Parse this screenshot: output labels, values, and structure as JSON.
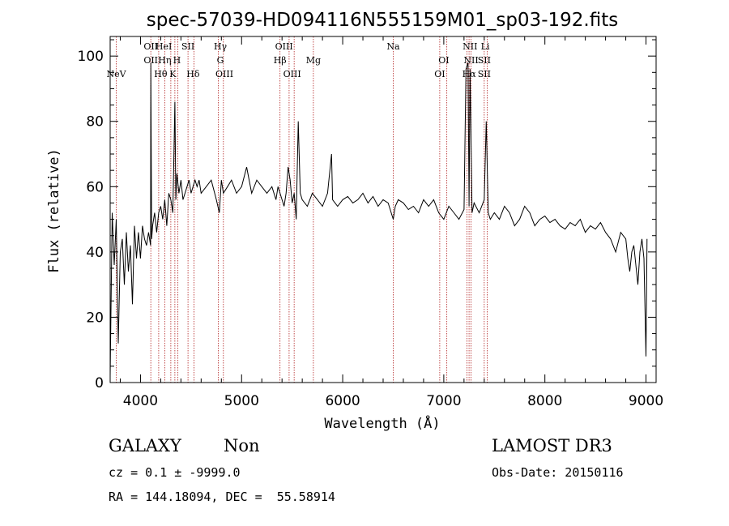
{
  "chart_data": {
    "type": "line",
    "title": "spec-57039-HD094116N555159M01_sp03-192.fits",
    "xlabel": "Wavelength (Å)",
    "ylabel": "Flux (relative)",
    "xlim": [
      3700,
      9100
    ],
    "ylim": [
      0,
      106
    ],
    "xticks": [
      4000,
      5000,
      6000,
      7000,
      8000,
      9000
    ],
    "yticks": [
      0,
      20,
      40,
      60,
      80,
      100
    ],
    "grid": false,
    "series": [
      {
        "values_x": [
          3700,
          3720,
          3740,
          3760,
          3780,
          3800,
          3820,
          3840,
          3860,
          3880,
          3900,
          3920,
          3940,
          3960,
          3980,
          4000,
          4020,
          4040,
          4060,
          4080,
          4100,
          4102,
          4110,
          4120,
          4140,
          4160,
          4180,
          4200,
          4220,
          4240,
          4260,
          4280,
          4300,
          4320,
          4340,
          4350,
          4360,
          4380,
          4400,
          4420,
          4440,
          4460,
          4480,
          4500,
          4520,
          4540,
          4560,
          4580,
          4600,
          4650,
          4700,
          4750,
          4780,
          4800,
          4820,
          4861,
          4900,
          4950,
          5000,
          5050,
          5100,
          5150,
          5200,
          5250,
          5300,
          5340,
          5360,
          5380,
          5400,
          5420,
          5440,
          5460,
          5480,
          5500,
          5520,
          5540,
          5560,
          5580,
          5600,
          5650,
          5700,
          5750,
          5800,
          5850,
          5890,
          5900,
          5950,
          6000,
          6050,
          6100,
          6150,
          6200,
          6250,
          6300,
          6350,
          6400,
          6450,
          6500,
          6520,
          6550,
          6600,
          6650,
          6700,
          6750,
          6800,
          6850,
          6900,
          6950,
          7000,
          7050,
          7100,
          7150,
          7200,
          7220,
          7240,
          7250,
          7260,
          7280,
          7300,
          7350,
          7400,
          7420,
          7440,
          7460,
          7500,
          7550,
          7600,
          7650,
          7700,
          7750,
          7800,
          7850,
          7900,
          7950,
          8000,
          8050,
          8100,
          8150,
          8200,
          8250,
          8300,
          8350,
          8400,
          8450,
          8500,
          8550,
          8600,
          8650,
          8700,
          8750,
          8800,
          8820,
          8840,
          8860,
          8880,
          8900,
          8920,
          8940,
          8960,
          8980,
          9000,
          9010
        ],
        "values_y": [
          2,
          52,
          36,
          50,
          12,
          40,
          44,
          30,
          46,
          34,
          42,
          24,
          48,
          38,
          46,
          38,
          48,
          44,
          42,
          46,
          42,
          98,
          44,
          48,
          52,
          46,
          52,
          54,
          50,
          56,
          48,
          58,
          56,
          52,
          86,
          56,
          64,
          58,
          62,
          56,
          58,
          60,
          62,
          58,
          60,
          62,
          60,
          62,
          58,
          60,
          62,
          56,
          52,
          62,
          58,
          60,
          62,
          58,
          60,
          66,
          58,
          62,
          60,
          58,
          60,
          56,
          60,
          58,
          56,
          54,
          58,
          66,
          62,
          55,
          58,
          50,
          80,
          58,
          56,
          54,
          58,
          56,
          54,
          58,
          70,
          56,
          54,
          56,
          57,
          55,
          56,
          58,
          55,
          57,
          54,
          56,
          55,
          50,
          54,
          56,
          55,
          53,
          54,
          52,
          56,
          54,
          56,
          52,
          50,
          54,
          52,
          50,
          53,
          96,
          98,
          54,
          96,
          52,
          55,
          52,
          56,
          80,
          52,
          50,
          52,
          50,
          54,
          52,
          48,
          50,
          54,
          52,
          48,
          50,
          51,
          49,
          50,
          48,
          47,
          49,
          48,
          50,
          46,
          48,
          47,
          49,
          46,
          44,
          40,
          46,
          44,
          38,
          34,
          40,
          42,
          36,
          30,
          40,
          44,
          38,
          8,
          44
        ]
      }
    ],
    "line_markers": [
      {
        "label": "NeV",
        "x": 3760,
        "row": 2
      },
      {
        "label": "OII",
        "x": 4102,
        "row": 0
      },
      {
        "label": "OII",
        "x": 4102,
        "row": 1
      },
      {
        "label": "Hθ",
        "x": 4200,
        "row": 2
      },
      {
        "label": "HeI",
        "x": 4230,
        "row": 0
      },
      {
        "label": "Hη",
        "x": 4240,
        "row": 1
      },
      {
        "label": "K",
        "x": 4320,
        "row": 2
      },
      {
        "label": "H",
        "x": 4360,
        "row": 1
      },
      {
        "label": "SII",
        "x": 4470,
        "row": 0
      },
      {
        "label": "Hδ",
        "x": 4520,
        "row": 2
      },
      {
        "label": "Hγ",
        "x": 4790,
        "row": 0
      },
      {
        "label": "G",
        "x": 4790,
        "row": 1
      },
      {
        "label": "OIII",
        "x": 4830,
        "row": 2
      },
      {
        "label": "OIII",
        "x": 5420,
        "row": 0
      },
      {
        "label": "Hβ",
        "x": 5380,
        "row": 1
      },
      {
        "label": "OIII",
        "x": 5500,
        "row": 2
      },
      {
        "label": "Mg",
        "x": 5710,
        "row": 1
      },
      {
        "label": "Na",
        "x": 6500,
        "row": 0
      },
      {
        "label": "OI",
        "x": 7000,
        "row": 1
      },
      {
        "label": "OI",
        "x": 6960,
        "row": 2
      },
      {
        "label": "NII",
        "x": 7260,
        "row": 0
      },
      {
        "label": "NII",
        "x": 7270,
        "row": 1
      },
      {
        "label": "Hα",
        "x": 7250,
        "row": 2
      },
      {
        "label": "SII",
        "x": 7400,
        "row": 1
      },
      {
        "label": "SII",
        "x": 7400,
        "row": 2
      },
      {
        "label": "Li",
        "x": 7410,
        "row": 0
      }
    ],
    "marker_lines_x": [
      3760,
      4102,
      4180,
      4240,
      4300,
      4340,
      4370,
      4470,
      4530,
      4770,
      4820,
      5380,
      5470,
      5520,
      5710,
      6500,
      6960,
      7030,
      7230,
      7250,
      7270,
      7400,
      7430
    ],
    "marker_color": "#b22222"
  },
  "info": {
    "class_label": "GALAXY",
    "subclass_label": "Non",
    "survey": "LAMOST DR3",
    "cz_text": "cz = 0.1 ± -9999.0",
    "obs_date": "Obs-Date: 20150116",
    "coords": "RA = 144.18094, DEC =  55.58914"
  }
}
